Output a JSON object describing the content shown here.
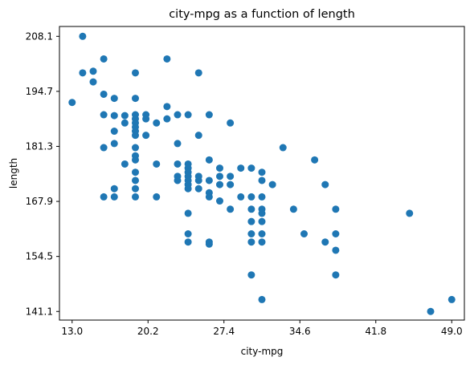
{
  "chart_data": {
    "type": "scatter",
    "title": "city-mpg as a function of length",
    "xlabel": "city-mpg",
    "ylabel": "length",
    "xlim": [
      11.8,
      50.2
    ],
    "ylim": [
      139.0,
      210.5
    ],
    "xticks": [
      13.0,
      20.2,
      27.4,
      34.6,
      41.8,
      49.0
    ],
    "xtick_labels": [
      "13.0",
      "20.2",
      "27.4",
      "34.6",
      "41.8",
      "49.0"
    ],
    "yticks": [
      141.1,
      154.5,
      167.9,
      181.3,
      194.7,
      208.1
    ],
    "ytick_labels": [
      "141.1",
      "154.5",
      "167.9",
      "181.3",
      "194.7",
      "208.1"
    ],
    "grid": false,
    "legend": false,
    "marker_color": "#1f77b4",
    "points": [
      [
        13,
        192.0
      ],
      [
        14,
        208.1
      ],
      [
        14,
        199.2
      ],
      [
        15,
        199.6
      ],
      [
        15,
        197.0
      ],
      [
        16,
        202.6
      ],
      [
        16,
        194.0
      ],
      [
        16,
        189.0
      ],
      [
        16,
        181.0
      ],
      [
        16,
        169.0
      ],
      [
        17,
        193.0
      ],
      [
        17,
        188.8
      ],
      [
        17,
        185.0
      ],
      [
        17,
        182.0
      ],
      [
        17,
        171.0
      ],
      [
        17,
        169.0
      ],
      [
        18,
        188.8
      ],
      [
        18,
        187.0
      ],
      [
        18,
        177.0
      ],
      [
        19,
        199.2
      ],
      [
        19,
        193.0
      ],
      [
        19,
        189.0
      ],
      [
        19,
        188.0
      ],
      [
        19,
        187.0
      ],
      [
        19,
        186.0
      ],
      [
        19,
        185.0
      ],
      [
        19,
        184.0
      ],
      [
        19,
        181.0
      ],
      [
        19,
        179.0
      ],
      [
        19,
        178.0
      ],
      [
        19,
        175.0
      ],
      [
        19,
        173.0
      ],
      [
        19,
        171.0
      ],
      [
        19,
        169.0
      ],
      [
        20,
        189.0
      ],
      [
        20,
        188.0
      ],
      [
        20,
        184.0
      ],
      [
        21,
        187.0
      ],
      [
        21,
        177.0
      ],
      [
        21,
        169.0
      ],
      [
        22,
        202.6
      ],
      [
        22,
        191.0
      ],
      [
        22,
        188.0
      ],
      [
        23,
        189.0
      ],
      [
        23,
        182.0
      ],
      [
        23,
        177.0
      ],
      [
        23,
        174.0
      ],
      [
        23,
        173.0
      ],
      [
        24,
        189.0
      ],
      [
        24,
        177.0
      ],
      [
        24,
        176.0
      ],
      [
        24,
        175.0
      ],
      [
        24,
        174.0
      ],
      [
        24,
        173.0
      ],
      [
        24,
        172.0
      ],
      [
        24,
        171.0
      ],
      [
        24,
        165.0
      ],
      [
        24,
        160.0
      ],
      [
        24,
        158.0
      ],
      [
        25,
        199.2
      ],
      [
        25,
        184.0
      ],
      [
        25,
        174.0
      ],
      [
        25,
        173.0
      ],
      [
        25,
        171.0
      ],
      [
        26,
        189.0
      ],
      [
        26,
        178.0
      ],
      [
        26,
        173.0
      ],
      [
        26,
        170.0
      ],
      [
        26,
        169.0
      ],
      [
        26,
        158.0
      ],
      [
        26,
        157.5
      ],
      [
        27,
        176.0
      ],
      [
        27,
        174.0
      ],
      [
        27,
        172.0
      ],
      [
        27,
        168.0
      ],
      [
        28,
        187.0
      ],
      [
        28,
        174.0
      ],
      [
        28,
        172.0
      ],
      [
        28,
        166.0
      ],
      [
        29,
        176.0
      ],
      [
        29,
        169.0
      ],
      [
        30,
        176.0
      ],
      [
        30,
        169.0
      ],
      [
        30,
        166.0
      ],
      [
        30,
        163.0
      ],
      [
        30,
        160.0
      ],
      [
        30,
        158.0
      ],
      [
        30,
        150.0
      ],
      [
        31,
        175.0
      ],
      [
        31,
        173.0
      ],
      [
        31,
        169.0
      ],
      [
        31,
        166.0
      ],
      [
        31,
        165.0
      ],
      [
        31,
        163.0
      ],
      [
        31,
        160.0
      ],
      [
        31,
        158.0
      ],
      [
        31,
        144.0
      ],
      [
        32,
        172.0
      ],
      [
        33,
        181.0
      ],
      [
        34,
        166.0
      ],
      [
        35,
        160.0
      ],
      [
        36,
        178.0
      ],
      [
        37,
        172.0
      ],
      [
        37,
        158.0
      ],
      [
        38,
        166.0
      ],
      [
        38,
        160.0
      ],
      [
        38,
        156.0
      ],
      [
        38,
        150.0
      ],
      [
        45,
        165.0
      ],
      [
        47,
        141.1
      ],
      [
        49,
        144.0
      ]
    ]
  }
}
